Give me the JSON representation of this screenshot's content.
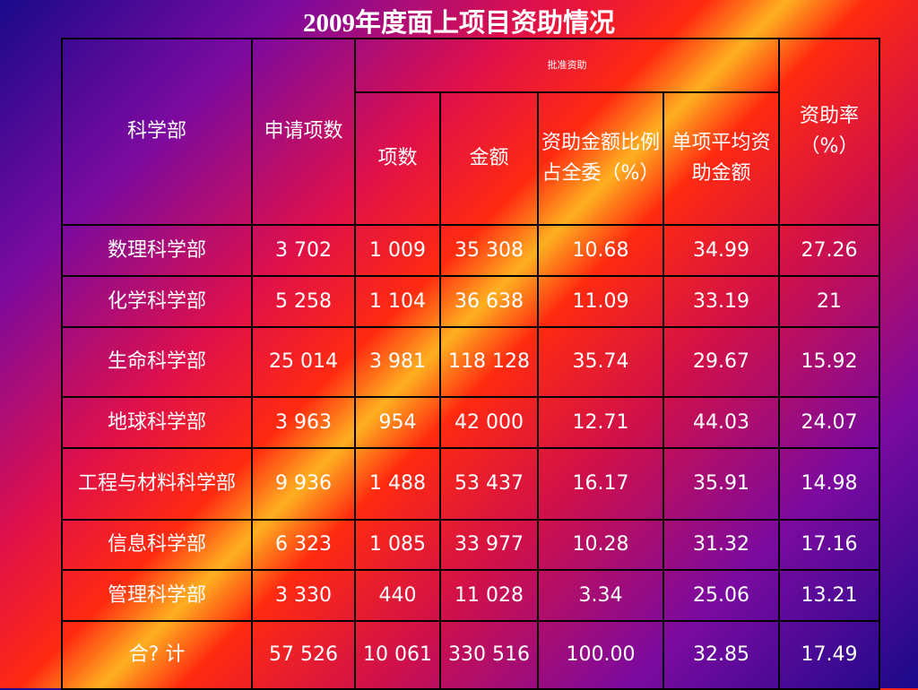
{
  "title": "2009年度面上项目资助情况",
  "headers": {
    "department": "科学部",
    "applications": "申请项数",
    "approved_group": "批准资助",
    "approved_count": "项数",
    "amount": "金额",
    "share": "资助金额比例占全委（%）",
    "avg_amount": "单项平均资助金额",
    "rate": "资助率（%）"
  },
  "rows": [
    {
      "department": "数理科学部",
      "applications": "3 702",
      "approved_count": "1 009",
      "amount": "35 308",
      "share": "10.68",
      "avg_amount": "34.99",
      "rate": "27.26"
    },
    {
      "department": "化学科学部",
      "applications": "5 258",
      "approved_count": "1 104",
      "amount": "36 638",
      "share": "11.09",
      "avg_amount": "33.19",
      "rate": "21"
    },
    {
      "department": "生命科学部",
      "applications": "25 014",
      "approved_count": "3 981",
      "amount": "118 128",
      "share": "35.74",
      "avg_amount": "29.67",
      "rate": "15.92"
    },
    {
      "department": "地球科学部",
      "applications": "3 963",
      "approved_count": "954",
      "amount": "42 000",
      "share": "12.71",
      "avg_amount": "44.03",
      "rate": "24.07"
    },
    {
      "department": "工程与材料科学部",
      "applications": "9 936",
      "approved_count": "1 488",
      "amount": "53 437",
      "share": "16.17",
      "avg_amount": "35.91",
      "rate": "14.98"
    },
    {
      "department": "信息科学部",
      "applications": "6 323",
      "approved_count": "1 085",
      "amount": "33 977",
      "share": "10.28",
      "avg_amount": "31.32",
      "rate": "17.16"
    },
    {
      "department": "管理科学部",
      "applications": "3 330",
      "approved_count": "440",
      "amount": "11 028",
      "share": "3.34",
      "avg_amount": "25.06",
      "rate": "13.21"
    },
    {
      "department": "合? 计",
      "applications": "57 526",
      "approved_count": "10 061",
      "amount": "330 516",
      "share": "100.00",
      "avg_amount": "32.85",
      "rate": "17.49"
    }
  ]
}
